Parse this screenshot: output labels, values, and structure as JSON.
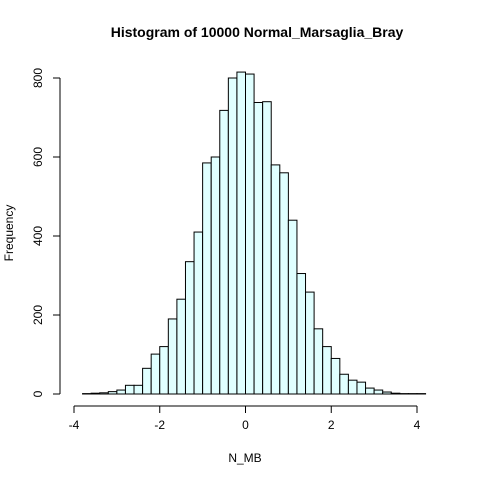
{
  "chart_data": {
    "type": "bar",
    "title": "Histogram of 10000 Normal_Marsaglia_Bray",
    "xlabel": "N_MB",
    "ylabel": "Frequency",
    "bin_width": 0.2,
    "bin_start": -3.8,
    "values": [
      1,
      2,
      3,
      6,
      10,
      22,
      22,
      65,
      101,
      120,
      190,
      240,
      335,
      410,
      585,
      600,
      718,
      800,
      815,
      810,
      738,
      740,
      580,
      560,
      440,
      305,
      258,
      165,
      120,
      90,
      50,
      35,
      30,
      15,
      10,
      5,
      2,
      1,
      1,
      1
    ],
    "xlim": [
      -4,
      4.4
    ],
    "ylim": [
      0,
      820
    ],
    "xticks": [
      -4,
      -2,
      0,
      2,
      4
    ],
    "yticks": [
      0,
      200,
      400,
      600,
      800
    ],
    "bar_color": "#e0ffff",
    "grid": false,
    "legend": "none"
  }
}
